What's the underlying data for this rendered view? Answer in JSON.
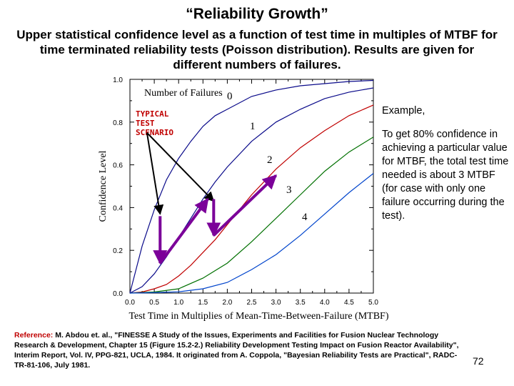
{
  "slide": {
    "title": "“Reliability Growth”",
    "subtitle": "Upper  statistical confidence level as a function of test time in multiples of MTBF for time terminated reliability tests (Poisson distribution).  Results are given for different numbers of failures.",
    "example_heading": "Example,",
    "example_body": "To get 80% confidence in achieving a particular value for MTBF, the total test time needed is about 3 MTBF (for case with only one failure occurring during the test).",
    "reference_label": "Reference:",
    "reference_text": " M. Abdou et. al., \"FINESSE A Study of the Issues, Experiments and Facilities for Fusion Nuclear Technology Research & Development, Chapter 15 (Figure 15.2-2.) Reliability Development Testing Impact on Fusion Reactor Availability\", Interim Report, Vol. IV, PPG-821, UCLA, 1984. It originated from A. Coppola, \"Bayesian Reliability Tests are Practical\", RADC-TR-81-106, July 1981.",
    "page_number": "72"
  },
  "chart_data": {
    "type": "line",
    "xlabel": "Test Time in Multiplies of Mean-Time-Between-Failure (MTBF)",
    "ylabel": "Confidence Level",
    "xlim": [
      0,
      5
    ],
    "ylim": [
      0,
      1
    ],
    "x_ticks": [
      "0.0",
      "0.5",
      "1.0",
      "1.5",
      "2.0",
      "2.5",
      "3.0",
      "3.5",
      "4.0",
      "4.5",
      "5.0"
    ],
    "y_ticks": [
      "0.0",
      "0.2",
      "0.4",
      "0.6",
      "0.8",
      "1.0"
    ],
    "legend_title": "Number of Failures",
    "series": [
      {
        "name": "0",
        "color": "#0a0a8a",
        "x": [
          0,
          0.25,
          0.5,
          0.75,
          1.0,
          1.25,
          1.5,
          1.75,
          2.0,
          2.5,
          3.0,
          3.5,
          4.0,
          4.5,
          5.0
        ],
        "y": [
          0,
          0.22,
          0.39,
          0.53,
          0.63,
          0.71,
          0.78,
          0.83,
          0.86,
          0.92,
          0.95,
          0.97,
          0.98,
          0.99,
          0.995
        ]
      },
      {
        "name": "1",
        "color": "#0a0a8a",
        "x": [
          0,
          0.25,
          0.5,
          0.75,
          1.0,
          1.25,
          1.5,
          1.75,
          2.0,
          2.5,
          3.0,
          3.5,
          4.0,
          4.5,
          5.0
        ],
        "y": [
          0,
          0.03,
          0.09,
          0.17,
          0.26,
          0.35,
          0.44,
          0.52,
          0.59,
          0.71,
          0.8,
          0.86,
          0.91,
          0.94,
          0.96
        ]
      },
      {
        "name": "2",
        "color": "#c00000",
        "x": [
          0,
          0.25,
          0.5,
          0.75,
          1.0,
          1.25,
          1.5,
          1.75,
          2.0,
          2.5,
          3.0,
          3.5,
          4.0,
          4.5,
          5.0
        ],
        "y": [
          0,
          0.005,
          0.02,
          0.04,
          0.08,
          0.13,
          0.19,
          0.25,
          0.32,
          0.46,
          0.58,
          0.68,
          0.76,
          0.83,
          0.88
        ]
      },
      {
        "name": "3",
        "color": "#007000",
        "x": [
          0,
          0.5,
          1.0,
          1.5,
          2.0,
          2.5,
          3.0,
          3.5,
          4.0,
          4.5,
          5.0
        ],
        "y": [
          0,
          0.005,
          0.02,
          0.07,
          0.14,
          0.24,
          0.35,
          0.46,
          0.57,
          0.66,
          0.73
        ]
      },
      {
        "name": "4",
        "color": "#0044cc",
        "x": [
          0,
          0.5,
          1.0,
          1.5,
          2.0,
          2.5,
          3.0,
          3.5,
          4.0,
          4.5,
          5.0
        ],
        "y": [
          0,
          0.002,
          0.006,
          0.02,
          0.05,
          0.11,
          0.18,
          0.27,
          0.37,
          0.47,
          0.56
        ]
      }
    ],
    "annotations": {
      "scenario_label": [
        "TYPICAL",
        "TEST",
        "SCENARIO"
      ],
      "scenario_label_color": "#c00000",
      "pointer_color": "#000000",
      "purple_color": "#7b0099",
      "pointers": [
        {
          "from": [
            0.35,
            0.75
          ],
          "to": [
            0.62,
            0.37
          ]
        },
        {
          "from": [
            0.35,
            0.75
          ],
          "to": [
            1.72,
            0.43
          ]
        }
      ],
      "vertical_steps": [
        {
          "x": 0.62,
          "y_top": 0.36,
          "y_bottom": 0.14
        },
        {
          "x": 1.72,
          "y_top": 0.44,
          "y_bottom": 0.27
        }
      ],
      "diagonal_arrows": [
        {
          "from": [
            0.62,
            0.14
          ],
          "to": [
            1.6,
            0.44
          ]
        },
        {
          "from": [
            1.72,
            0.27
          ],
          "to": [
            3.0,
            0.55
          ]
        }
      ]
    }
  }
}
